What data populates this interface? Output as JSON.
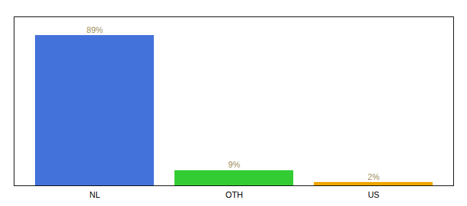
{
  "chart_data": {
    "type": "bar",
    "categories": [
      "NL",
      "OTH",
      "US"
    ],
    "values": [
      89,
      9,
      2
    ],
    "value_labels": [
      "89%",
      "9%",
      "2%"
    ],
    "colors": [
      "#4472db",
      "#33cc33",
      "#f0a500"
    ],
    "ylim": [
      0,
      100
    ],
    "yticks": [],
    "grid": false,
    "data_labels": true,
    "tick_labels": "x"
  }
}
